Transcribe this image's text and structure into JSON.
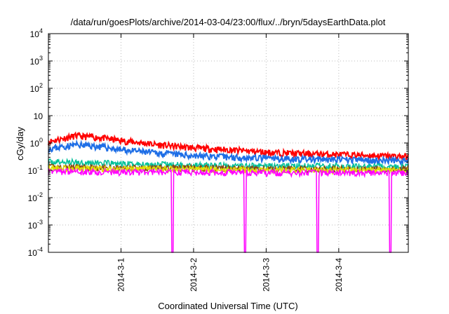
{
  "chart_data": {
    "type": "line",
    "title": "/data/run/goesPlots/archive/2014-03-04/23:00/flux/../bryn/5daysEarthData.plot",
    "xlabel": "Coordinated Universal Time (UTC)",
    "ylabel": "cGy/day",
    "yscale": "log",
    "ylim": [
      0.0001,
      10000
    ],
    "xlim": [
      "2014-02-28T00:00",
      "2014-03-04T23:00"
    ],
    "y_ticks": [
      {
        "base": "10",
        "exp": "4",
        "value": 10000
      },
      {
        "base": "10",
        "exp": "3",
        "value": 1000
      },
      {
        "base": "10",
        "exp": "2",
        "value": 100
      },
      {
        "base": "10",
        "exp": "",
        "value": 10
      },
      {
        "base": "10",
        "exp": "0",
        "value": 1
      },
      {
        "base": "10",
        "exp": "-1",
        "value": 0.1
      },
      {
        "base": "10",
        "exp": "-2",
        "value": 0.01
      },
      {
        "base": "10",
        "exp": "-3",
        "value": 0.001
      },
      {
        "base": "10",
        "exp": "-4",
        "value": 0.0001
      }
    ],
    "x_ticks": [
      {
        "label": "2014-3-1",
        "value": "2014-03-01T00:00"
      },
      {
        "label": "2014-3-2",
        "value": "2014-03-02T00:00"
      },
      {
        "label": "2014-3-3",
        "value": "2014-03-03T00:00"
      },
      {
        "label": "2014-3-4",
        "value": "2014-03-04T00:00"
      }
    ],
    "grid": true,
    "dropouts": [
      "2014-03-01T17:00",
      "2014-03-02T17:00",
      "2014-03-03T17:00",
      "2014-03-04T17:00"
    ],
    "series": [
      {
        "color": "#ff0000",
        "x": [
          "2014-02-28T00:00",
          "2014-02-28T09:00",
          "2014-02-28T18:00",
          "2014-03-01T00:00",
          "2014-03-01T12:00",
          "2014-03-02T00:00",
          "2014-03-02T12:00",
          "2014-03-03T00:00",
          "2014-03-03T12:00",
          "2014-03-04T00:00",
          "2014-03-04T12:00",
          "2014-03-04T23:00"
        ],
        "y": [
          1.1,
          1.8,
          1.5,
          1.2,
          0.85,
          0.65,
          0.55,
          0.45,
          0.4,
          0.37,
          0.34,
          0.31
        ]
      },
      {
        "color": "#1e6ee6",
        "x": [
          "2014-02-28T00:00",
          "2014-02-28T09:00",
          "2014-02-28T18:00",
          "2014-03-01T00:00",
          "2014-03-01T12:00",
          "2014-03-02T00:00",
          "2014-03-02T12:00",
          "2014-03-03T00:00",
          "2014-03-03T12:00",
          "2014-03-04T00:00",
          "2014-03-04T12:00",
          "2014-03-04T23:00"
        ],
        "y": [
          0.6,
          0.85,
          0.7,
          0.55,
          0.42,
          0.34,
          0.3,
          0.27,
          0.25,
          0.24,
          0.23,
          0.22
        ]
      },
      {
        "color": "#00c09a",
        "x": [
          "2014-02-28T00:00",
          "2014-02-28T12:00",
          "2014-03-01T00:00",
          "2014-03-02T00:00",
          "2014-03-03T00:00",
          "2014-03-04T00:00",
          "2014-03-04T23:00"
        ],
        "y": [
          0.2,
          0.19,
          0.17,
          0.15,
          0.14,
          0.14,
          0.13
        ]
      },
      {
        "color": "#8b4513",
        "x": [
          "2014-02-28T00:00",
          "2014-03-01T00:00",
          "2014-03-02T00:00",
          "2014-03-03T00:00",
          "2014-03-04T00:00",
          "2014-03-04T23:00"
        ],
        "y": [
          0.13,
          0.12,
          0.12,
          0.11,
          0.11,
          0.11
        ]
      },
      {
        "color": "#e0e000",
        "x": [
          "2014-02-28T00:00",
          "2014-03-01T00:00",
          "2014-03-02T00:00",
          "2014-03-03T00:00",
          "2014-03-04T00:00",
          "2014-03-04T23:00"
        ],
        "y": [
          0.12,
          0.11,
          0.11,
          0.1,
          0.1,
          0.1
        ]
      },
      {
        "color": "#ff00ff",
        "x": [
          "2014-02-28T00:00",
          "2014-03-01T00:00",
          "2014-03-02T00:00",
          "2014-03-03T00:00",
          "2014-03-04T00:00",
          "2014-03-04T23:00"
        ],
        "y": [
          0.09,
          0.085,
          0.085,
          0.08,
          0.08,
          0.08
        ]
      }
    ]
  }
}
